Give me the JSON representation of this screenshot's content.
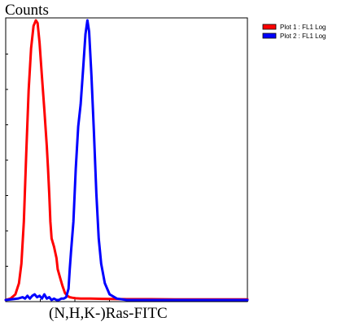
{
  "chart_data": {
    "type": "line",
    "title": "",
    "xlabel": "(N,H,K-)Ras-FITC",
    "ylabel": "Counts",
    "xlim": [
      0,
      100
    ],
    "ylim": [
      0,
      100
    ],
    "grid": false,
    "legend_position": "top-right",
    "series": [
      {
        "name": "Plot 1 : FL1 Log",
        "color": "#ff0000",
        "x": [
          0,
          2,
          4,
          5.5,
          6.5,
          7.5,
          8.5,
          9.5,
          10.5,
          11.5,
          12.5,
          13.2,
          14,
          15,
          16,
          17,
          17.5,
          18,
          18.5,
          19,
          20,
          21,
          21.5,
          22.5,
          23.5,
          24.5,
          25.5,
          26.5,
          27.5,
          29,
          31,
          35,
          40,
          50,
          60,
          70,
          80,
          90,
          100
        ],
        "values": [
          0,
          0.5,
          2,
          6,
          13,
          28,
          52,
          75,
          90,
          98,
          100,
          99,
          92,
          80,
          68,
          55,
          47,
          38,
          28,
          22,
          19,
          15,
          11,
          8,
          5,
          2.5,
          1.5,
          1,
          0.8,
          0.6,
          0.5,
          0.5,
          0.4,
          0.3,
          0.3,
          0.2,
          0.2,
          0.2,
          0.2
        ]
      },
      {
        "name": "Plot 2 : FL1 Log",
        "color": "#0000ff",
        "x": [
          0,
          5,
          7,
          8,
          9,
          10,
          11,
          12,
          13,
          14,
          15,
          16,
          17,
          18,
          19,
          20,
          21,
          22,
          23,
          24,
          25,
          26,
          26.5,
          27,
          28,
          29,
          30,
          31,
          32,
          33,
          33.8,
          34.5,
          35.5,
          36.5,
          37.5,
          38.5,
          39.5,
          41,
          43,
          46,
          50,
          60,
          70,
          80,
          90,
          100
        ],
        "values": [
          0,
          0.5,
          1,
          0.5,
          1.5,
          0.5,
          1.5,
          2,
          1,
          1.5,
          0.5,
          2,
          0.5,
          1,
          0,
          0.5,
          0,
          0,
          0.5,
          0.5,
          1,
          4,
          11,
          17,
          28,
          47,
          62,
          70,
          82,
          95,
          100,
          96,
          80,
          60,
          38,
          22,
          13,
          6,
          2,
          0.5,
          0,
          0,
          0,
          0,
          0,
          0
        ]
      }
    ]
  }
}
